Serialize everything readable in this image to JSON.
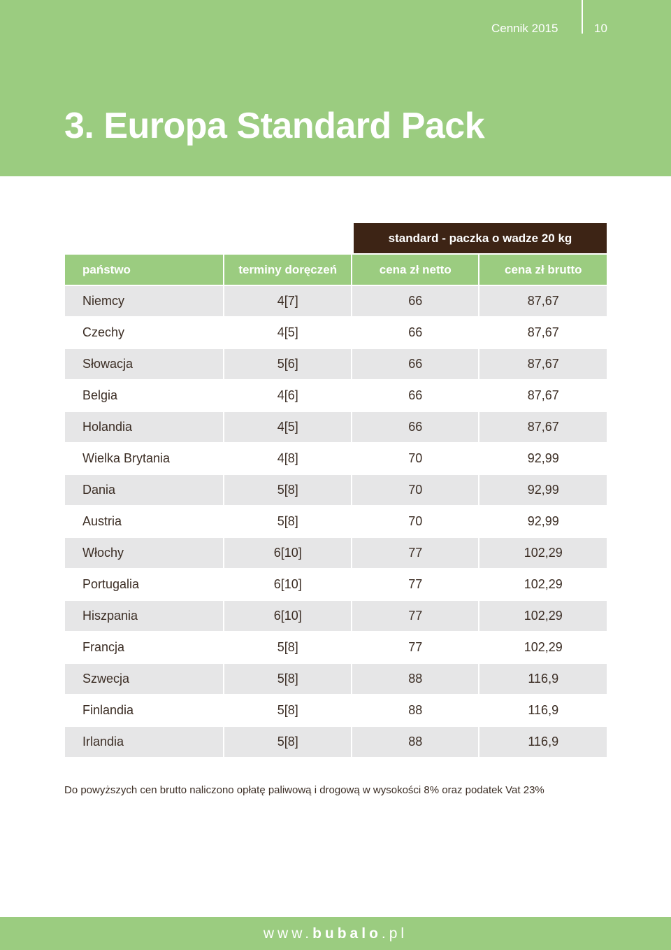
{
  "header": {
    "doc_label": "Cennik 2015",
    "page_number": "10",
    "title": "3. Europa Standard Pack"
  },
  "table": {
    "group_header": "standard - paczka o wadze 20 kg",
    "columns": [
      "państwo",
      "terminy doręczeń",
      "cena zł netto",
      "cena zł brutto"
    ],
    "rows": [
      [
        "Niemcy",
        "4[7]",
        "66",
        "87,67"
      ],
      [
        "Czechy",
        "4[5]",
        "66",
        "87,67"
      ],
      [
        "Słowacja",
        "5[6]",
        "66",
        "87,67"
      ],
      [
        "Belgia",
        "4[6]",
        "66",
        "87,67"
      ],
      [
        "Holandia",
        "4[5]",
        "66",
        "87,67"
      ],
      [
        "Wielka Brytania",
        "4[8]",
        "70",
        "92,99"
      ],
      [
        "Dania",
        "5[8]",
        "70",
        "92,99"
      ],
      [
        "Austria",
        "5[8]",
        "70",
        "92,99"
      ],
      [
        "Włochy",
        "6[10]",
        "77",
        "102,29"
      ],
      [
        "Portugalia",
        "6[10]",
        "77",
        "102,29"
      ],
      [
        "Hiszpania",
        "6[10]",
        "77",
        "102,29"
      ],
      [
        "Francja",
        "5[8]",
        "77",
        "102,29"
      ],
      [
        "Szwecja",
        "5[8]",
        "88",
        "116,9"
      ],
      [
        "Finlandia",
        "5[8]",
        "88",
        "116,9"
      ],
      [
        "Irlandia",
        "5[8]",
        "88",
        "116,9"
      ]
    ]
  },
  "note": "Do powyższych cen brutto naliczono opłatę paliwową i drogową w wysokości 8% oraz podatek Vat 23%",
  "footer": {
    "website_prefix": "www.",
    "website_domain": "bubalo",
    "website_suffix": ".pl"
  },
  "colors": {
    "brand_green": "#9bcc80",
    "dark_brown": "#3d2415",
    "row_gray": "#e6e6e7"
  }
}
